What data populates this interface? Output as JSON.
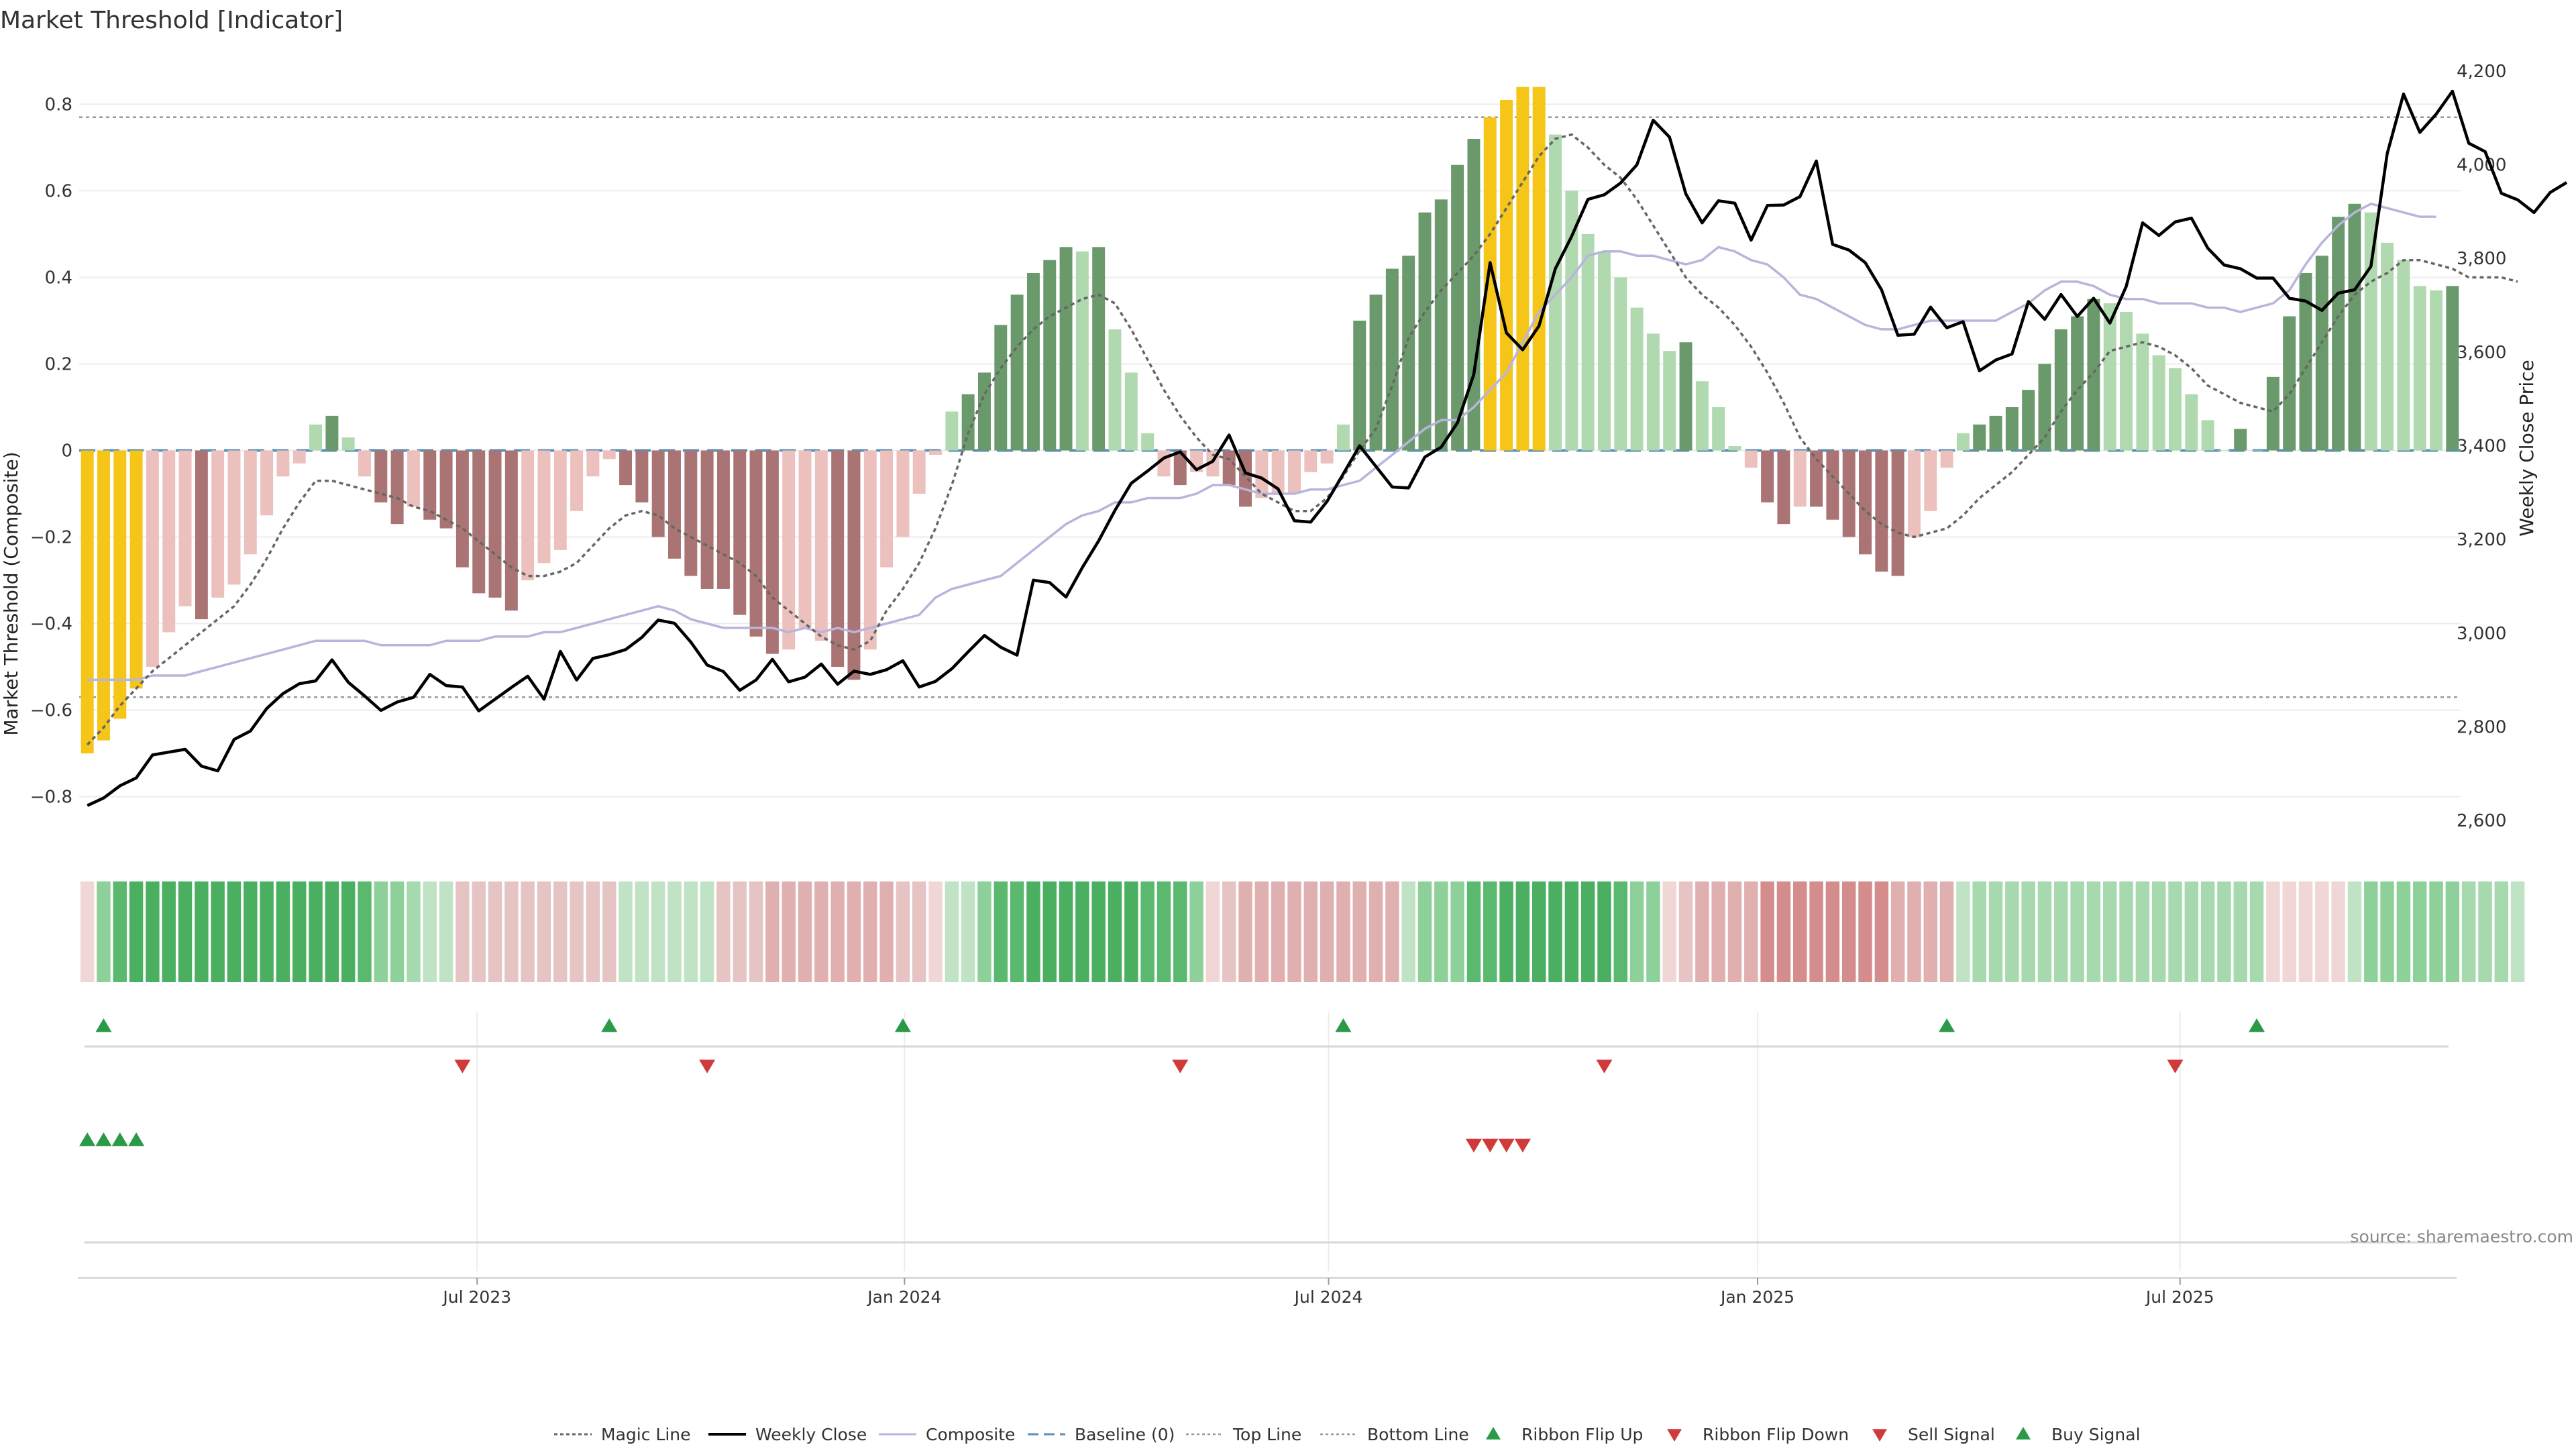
{
  "title": "Market Threshold [Indicator]",
  "source": "source: sharemaestro.com",
  "colors": {
    "yellow": "#f5c518",
    "dark_green": "#6a9a6c",
    "light_green": "#b1d9b0",
    "dark_red": "#ab7474",
    "light_red": "#ecc1bd",
    "magic_line": "#666666",
    "weekly_close": "#000000",
    "composite": "#b9b4dc",
    "baseline": "#5b8fb5",
    "threshold_lines": "#999999",
    "flip_up": "#2a9a48",
    "flip_down": "#d03a3a"
  },
  "legend": [
    {
      "label": "Magic Line",
      "icon": "dotted-line-icon"
    },
    {
      "label": "Weekly Close",
      "icon": "solid-line-icon"
    },
    {
      "label": "Composite",
      "icon": "thin-line-icon"
    },
    {
      "label": "Baseline (0)",
      "icon": "dashed-line-icon"
    },
    {
      "label": "Top Line",
      "icon": "dotted-line-icon"
    },
    {
      "label": "Bottom Line",
      "icon": "dotted-line-icon"
    },
    {
      "label": "Ribbon Flip Up",
      "icon": "triangle-up-icon"
    },
    {
      "label": "Ribbon Flip Down",
      "icon": "triangle-down-icon"
    },
    {
      "label": "Sell Signal",
      "icon": "triangle-down-icon"
    },
    {
      "label": "Buy Signal",
      "icon": "triangle-up-icon"
    }
  ],
  "chart_data": {
    "type": "bar",
    "ylabel": "Market Threshold (Composite)",
    "y2label": "Weekly Close Price",
    "ylim": [
      -0.92,
      0.92
    ],
    "y2lim": [
      2540,
      4240
    ],
    "yticks": [
      -0.8,
      -0.6,
      -0.4,
      -0.2,
      0,
      0.2,
      0.4,
      0.6,
      0.8
    ],
    "y2ticks": [
      2600,
      2800,
      3000,
      3200,
      3400,
      3600,
      3800,
      4000,
      4200
    ],
    "xticks": [
      "Jul 2023",
      "Jan 2024",
      "Jul 2024",
      "Jan 2025",
      "Jul 2025"
    ],
    "top_line": 0.77,
    "bottom_line": -0.57,
    "baseline": 0,
    "grid": true,
    "legend_position": "bottom",
    "bar_colors_key": "Y=yellow G=dark green g=light green R=dark red r=light red",
    "composite_bars": [
      {
        "v": -0.7,
        "c": "Y"
      },
      {
        "v": -0.67,
        "c": "Y"
      },
      {
        "v": -0.62,
        "c": "Y"
      },
      {
        "v": -0.55,
        "c": "Y"
      },
      {
        "v": -0.5,
        "c": "r"
      },
      {
        "v": -0.42,
        "c": "r"
      },
      {
        "v": -0.36,
        "c": "r"
      },
      {
        "v": -0.39,
        "c": "R"
      },
      {
        "v": -0.34,
        "c": "r"
      },
      {
        "v": -0.31,
        "c": "r"
      },
      {
        "v": -0.24,
        "c": "r"
      },
      {
        "v": -0.15,
        "c": "r"
      },
      {
        "v": -0.06,
        "c": "r"
      },
      {
        "v": -0.03,
        "c": "r"
      },
      {
        "v": 0.06,
        "c": "g"
      },
      {
        "v": 0.08,
        "c": "G"
      },
      {
        "v": 0.03,
        "c": "g"
      },
      {
        "v": -0.06,
        "c": "r"
      },
      {
        "v": -0.12,
        "c": "R"
      },
      {
        "v": -0.17,
        "c": "R"
      },
      {
        "v": -0.13,
        "c": "r"
      },
      {
        "v": -0.16,
        "c": "R"
      },
      {
        "v": -0.18,
        "c": "R"
      },
      {
        "v": -0.27,
        "c": "R"
      },
      {
        "v": -0.33,
        "c": "R"
      },
      {
        "v": -0.34,
        "c": "R"
      },
      {
        "v": -0.37,
        "c": "R"
      },
      {
        "v": -0.3,
        "c": "r"
      },
      {
        "v": -0.26,
        "c": "r"
      },
      {
        "v": -0.23,
        "c": "r"
      },
      {
        "v": -0.14,
        "c": "r"
      },
      {
        "v": -0.06,
        "c": "r"
      },
      {
        "v": -0.02,
        "c": "r"
      },
      {
        "v": -0.08,
        "c": "R"
      },
      {
        "v": -0.12,
        "c": "R"
      },
      {
        "v": -0.2,
        "c": "R"
      },
      {
        "v": -0.25,
        "c": "R"
      },
      {
        "v": -0.29,
        "c": "R"
      },
      {
        "v": -0.32,
        "c": "R"
      },
      {
        "v": -0.32,
        "c": "R"
      },
      {
        "v": -0.38,
        "c": "R"
      },
      {
        "v": -0.43,
        "c": "R"
      },
      {
        "v": -0.47,
        "c": "R"
      },
      {
        "v": -0.46,
        "c": "r"
      },
      {
        "v": -0.41,
        "c": "r"
      },
      {
        "v": -0.44,
        "c": "r"
      },
      {
        "v": -0.5,
        "c": "R"
      },
      {
        "v": -0.53,
        "c": "R"
      },
      {
        "v": -0.46,
        "c": "r"
      },
      {
        "v": -0.27,
        "c": "r"
      },
      {
        "v": -0.2,
        "c": "r"
      },
      {
        "v": -0.1,
        "c": "r"
      },
      {
        "v": -0.01,
        "c": "r"
      },
      {
        "v": 0.09,
        "c": "g"
      },
      {
        "v": 0.13,
        "c": "G"
      },
      {
        "v": 0.18,
        "c": "G"
      },
      {
        "v": 0.29,
        "c": "G"
      },
      {
        "v": 0.36,
        "c": "G"
      },
      {
        "v": 0.41,
        "c": "G"
      },
      {
        "v": 0.44,
        "c": "G"
      },
      {
        "v": 0.47,
        "c": "G"
      },
      {
        "v": 0.46,
        "c": "g"
      },
      {
        "v": 0.47,
        "c": "G"
      },
      {
        "v": 0.28,
        "c": "g"
      },
      {
        "v": 0.18,
        "c": "g"
      },
      {
        "v": 0.04,
        "c": "g"
      },
      {
        "v": -0.06,
        "c": "r"
      },
      {
        "v": -0.08,
        "c": "R"
      },
      {
        "v": -0.05,
        "c": "r"
      },
      {
        "v": -0.06,
        "c": "r"
      },
      {
        "v": -0.08,
        "c": "R"
      },
      {
        "v": -0.13,
        "c": "R"
      },
      {
        "v": -0.11,
        "c": "r"
      },
      {
        "v": -0.1,
        "c": "r"
      },
      {
        "v": -0.1,
        "c": "r"
      },
      {
        "v": -0.05,
        "c": "r"
      },
      {
        "v": -0.03,
        "c": "r"
      },
      {
        "v": 0.06,
        "c": "g"
      },
      {
        "v": 0.3,
        "c": "G"
      },
      {
        "v": 0.36,
        "c": "G"
      },
      {
        "v": 0.42,
        "c": "G"
      },
      {
        "v": 0.45,
        "c": "G"
      },
      {
        "v": 0.55,
        "c": "G"
      },
      {
        "v": 0.58,
        "c": "G"
      },
      {
        "v": 0.66,
        "c": "G"
      },
      {
        "v": 0.72,
        "c": "G"
      },
      {
        "v": 0.77,
        "c": "Y"
      },
      {
        "v": 0.81,
        "c": "Y"
      },
      {
        "v": 0.84,
        "c": "Y"
      },
      {
        "v": 0.84,
        "c": "Y"
      },
      {
        "v": 0.73,
        "c": "g"
      },
      {
        "v": 0.6,
        "c": "g"
      },
      {
        "v": 0.5,
        "c": "g"
      },
      {
        "v": 0.46,
        "c": "g"
      },
      {
        "v": 0.4,
        "c": "g"
      },
      {
        "v": 0.33,
        "c": "g"
      },
      {
        "v": 0.27,
        "c": "g"
      },
      {
        "v": 0.23,
        "c": "g"
      },
      {
        "v": 0.25,
        "c": "G"
      },
      {
        "v": 0.16,
        "c": "g"
      },
      {
        "v": 0.1,
        "c": "g"
      },
      {
        "v": 0.01,
        "c": "g"
      },
      {
        "v": -0.04,
        "c": "r"
      },
      {
        "v": -0.12,
        "c": "R"
      },
      {
        "v": -0.17,
        "c": "R"
      },
      {
        "v": -0.13,
        "c": "r"
      },
      {
        "v": -0.13,
        "c": "R"
      },
      {
        "v": -0.16,
        "c": "R"
      },
      {
        "v": -0.2,
        "c": "R"
      },
      {
        "v": -0.24,
        "c": "R"
      },
      {
        "v": -0.28,
        "c": "R"
      },
      {
        "v": -0.29,
        "c": "R"
      },
      {
        "v": -0.2,
        "c": "r"
      },
      {
        "v": -0.14,
        "c": "r"
      },
      {
        "v": -0.04,
        "c": "r"
      },
      {
        "v": 0.04,
        "c": "g"
      },
      {
        "v": 0.06,
        "c": "G"
      },
      {
        "v": 0.08,
        "c": "G"
      },
      {
        "v": 0.1,
        "c": "G"
      },
      {
        "v": 0.14,
        "c": "G"
      },
      {
        "v": 0.2,
        "c": "G"
      },
      {
        "v": 0.28,
        "c": "G"
      },
      {
        "v": 0.31,
        "c": "G"
      },
      {
        "v": 0.35,
        "c": "G"
      },
      {
        "v": 0.34,
        "c": "g"
      },
      {
        "v": 0.32,
        "c": "g"
      },
      {
        "v": 0.27,
        "c": "g"
      },
      {
        "v": 0.22,
        "c": "g"
      },
      {
        "v": 0.19,
        "c": "g"
      },
      {
        "v": 0.13,
        "c": "g"
      },
      {
        "v": 0.07,
        "c": "g"
      },
      {
        "v": 0.0,
        "c": "g"
      },
      {
        "v": 0.05,
        "c": "G"
      },
      {
        "v": 0.0,
        "c": "g"
      },
      {
        "v": 0.17,
        "c": "G"
      },
      {
        "v": 0.31,
        "c": "G"
      },
      {
        "v": 0.41,
        "c": "G"
      },
      {
        "v": 0.45,
        "c": "G"
      },
      {
        "v": 0.54,
        "c": "G"
      },
      {
        "v": 0.57,
        "c": "G"
      },
      {
        "v": 0.55,
        "c": "g"
      },
      {
        "v": 0.48,
        "c": "g"
      },
      {
        "v": 0.44,
        "c": "g"
      },
      {
        "v": 0.38,
        "c": "g"
      },
      {
        "v": 0.37,
        "c": "g"
      },
      {
        "v": 0.38,
        "c": "G"
      }
    ],
    "weekly_close": [
      2632,
      2648,
      2674,
      2691,
      2740,
      2746,
      2752,
      2716,
      2706,
      2773,
      2791,
      2839,
      2871,
      2892,
      2898,
      2943,
      2895,
      2866,
      2835,
      2853,
      2863,
      2912,
      2888,
      2885,
      2834,
      2859,
      2884,
      2908,
      2859,
      2961,
      2900,
      2946,
      2954,
      2965,
      2991,
      3028,
      3021,
      2981,
      2932,
      2918,
      2878,
      2900,
      2944,
      2896,
      2906,
      2934,
      2891,
      2919,
      2912,
      2922,
      2941,
      2885,
      2897,
      2924,
      2960,
      2995,
      2970,
      2953,
      3113,
      3108,
      3077,
      3140,
      3197,
      3262,
      3320,
      3346,
      3374,
      3387,
      3349,
      3367,
      3423,
      3342,
      3331,
      3308,
      3240,
      3237,
      3281,
      3340,
      3400,
      3356,
      3312,
      3310,
      3376,
      3397,
      3449,
      3552,
      3791,
      3641,
      3605,
      3656,
      3778,
      3847,
      3926,
      3936,
      3961,
      4000,
      4095,
      4059,
      3938,
      3876,
      3923,
      3918,
      3839,
      3913,
      3914,
      3932,
      4008,
      3830,
      3818,
      3791,
      3733,
      3636,
      3638,
      3696,
      3652,
      3665,
      3560,
      3583,
      3596,
      3708,
      3670,
      3723,
      3676,
      3715,
      3662,
      3740,
      3876,
      3849,
      3878,
      3886,
      3822,
      3786,
      3778,
      3758,
      3758,
      3715,
      3709,
      3689,
      3726,
      3733,
      3783,
      4024,
      4151,
      4069,
      4108,
      4157,
      4046,
      4028,
      3939,
      3925,
      3898,
      3941,
      3962
    ],
    "magic_line": [
      -0.68,
      -0.64,
      -0.59,
      -0.55,
      -0.51,
      -0.48,
      -0.45,
      -0.42,
      -0.39,
      -0.36,
      -0.31,
      -0.25,
      -0.18,
      -0.12,
      -0.07,
      -0.07,
      -0.08,
      -0.09,
      -0.1,
      -0.11,
      -0.13,
      -0.14,
      -0.16,
      -0.18,
      -0.21,
      -0.24,
      -0.27,
      -0.29,
      -0.29,
      -0.28,
      -0.26,
      -0.22,
      -0.18,
      -0.15,
      -0.14,
      -0.15,
      -0.18,
      -0.2,
      -0.22,
      -0.24,
      -0.26,
      -0.29,
      -0.34,
      -0.37,
      -0.4,
      -0.43,
      -0.45,
      -0.46,
      -0.44,
      -0.37,
      -0.32,
      -0.26,
      -0.18,
      -0.08,
      0.04,
      0.13,
      0.19,
      0.24,
      0.28,
      0.31,
      0.33,
      0.35,
      0.36,
      0.34,
      0.28,
      0.21,
      0.14,
      0.08,
      0.03,
      -0.01,
      -0.02,
      -0.06,
      -0.1,
      -0.12,
      -0.14,
      -0.14,
      -0.11,
      -0.06,
      0.0,
      0.05,
      0.15,
      0.26,
      0.32,
      0.37,
      0.41,
      0.45,
      0.5,
      0.56,
      0.62,
      0.68,
      0.72,
      0.73,
      0.7,
      0.66,
      0.63,
      0.58,
      0.52,
      0.46,
      0.4,
      0.36,
      0.33,
      0.29,
      0.24,
      0.18,
      0.11,
      0.03,
      -0.02,
      -0.06,
      -0.1,
      -0.14,
      -0.17,
      -0.19,
      -0.2,
      -0.19,
      -0.18,
      -0.15,
      -0.11,
      -0.08,
      -0.05,
      -0.01,
      0.03,
      0.09,
      0.14,
      0.18,
      0.23,
      0.24,
      0.25,
      0.24,
      0.22,
      0.19,
      0.15,
      0.13,
      0.11,
      0.1,
      0.09,
      0.13,
      0.19,
      0.25,
      0.31,
      0.36,
      0.39,
      0.41,
      0.44,
      0.44,
      0.43,
      0.42,
      0.4,
      0.4,
      0.4,
      0.39
    ],
    "composite_line": [
      -0.53,
      -0.53,
      -0.53,
      -0.53,
      -0.52,
      -0.52,
      -0.52,
      -0.51,
      -0.5,
      -0.49,
      -0.48,
      -0.47,
      -0.46,
      -0.45,
      -0.44,
      -0.44,
      -0.44,
      -0.44,
      -0.45,
      -0.45,
      -0.45,
      -0.45,
      -0.44,
      -0.44,
      -0.44,
      -0.43,
      -0.43,
      -0.43,
      -0.42,
      -0.42,
      -0.41,
      -0.4,
      -0.39,
      -0.38,
      -0.37,
      -0.36,
      -0.37,
      -0.39,
      -0.4,
      -0.41,
      -0.41,
      -0.41,
      -0.41,
      -0.42,
      -0.41,
      -0.42,
      -0.41,
      -0.42,
      -0.41,
      -0.4,
      -0.39,
      -0.38,
      -0.34,
      -0.32,
      -0.31,
      -0.3,
      -0.29,
      -0.26,
      -0.23,
      -0.2,
      -0.17,
      -0.15,
      -0.14,
      -0.12,
      -0.12,
      -0.11,
      -0.11,
      -0.11,
      -0.1,
      -0.08,
      -0.08,
      -0.09,
      -0.1,
      -0.1,
      -0.1,
      -0.09,
      -0.09,
      -0.08,
      -0.07,
      -0.04,
      -0.01,
      0.02,
      0.05,
      0.07,
      0.07,
      0.1,
      0.14,
      0.18,
      0.25,
      0.32,
      0.36,
      0.4,
      0.45,
      0.46,
      0.46,
      0.45,
      0.45,
      0.44,
      0.43,
      0.44,
      0.47,
      0.46,
      0.44,
      0.43,
      0.4,
      0.36,
      0.35,
      0.33,
      0.31,
      0.29,
      0.28,
      0.28,
      0.29,
      0.3,
      0.3,
      0.3,
      0.3,
      0.3,
      0.32,
      0.34,
      0.37,
      0.39,
      0.39,
      0.38,
      0.36,
      0.35,
      0.35,
      0.34,
      0.34,
      0.34,
      0.33,
      0.33,
      0.32,
      0.33,
      0.34,
      0.37,
      0.43,
      0.48,
      0.52,
      0.55,
      0.57,
      0.56,
      0.55,
      0.54,
      0.54
    ],
    "ribbon_colors": [
      "#f1d6d6",
      "#8ed09a",
      "#5bb86f",
      "#4aaf60",
      "#4aaf60",
      "#4aaf60",
      "#4aaf60",
      "#4aaf60",
      "#4aaf60",
      "#4aaf60",
      "#4aaf60",
      "#4aaf60",
      "#4aaf60",
      "#4aaf60",
      "#4aaf60",
      "#4aaf60",
      "#4aaf60",
      "#5bb86f",
      "#8ed09a",
      "#8ed09a",
      "#a6d9ad",
      "#bfe3c4",
      "#bfe3c4",
      "#e6c4c4",
      "#e6c4c4",
      "#e6c4c4",
      "#e6c4c4",
      "#e6c4c4",
      "#e6c4c4",
      "#e6c4c4",
      "#e6c4c4",
      "#e6c4c4",
      "#e6c4c4",
      "#bfe3c4",
      "#bfe3c4",
      "#bfe3c4",
      "#bfe3c4",
      "#bfe3c4",
      "#bfe3c4",
      "#e6c4c4",
      "#e6c4c4",
      "#e6c4c4",
      "#e0b0b0",
      "#e0b0b0",
      "#e0b0b0",
      "#e0b0b0",
      "#e0b0b0",
      "#e0b0b0",
      "#e0b0b0",
      "#e0b0b0",
      "#e6c4c4",
      "#e6c4c4",
      "#f1d6d6",
      "#bfe3c4",
      "#bfe3c4",
      "#8ed09a",
      "#5bb86f",
      "#5bb86f",
      "#4aaf60",
      "#4aaf60",
      "#4aaf60",
      "#4aaf60",
      "#4aaf60",
      "#4aaf60",
      "#4aaf60",
      "#5bb86f",
      "#5bb86f",
      "#5bb86f",
      "#8ed09a",
      "#f1d6d6",
      "#e6c4c4",
      "#e0b0b0",
      "#e0b0b0",
      "#e0b0b0",
      "#e0b0b0",
      "#e0b0b0",
      "#e0b0b0",
      "#e0b0b0",
      "#e0b0b0",
      "#e0b0b0",
      "#e0b0b0",
      "#bfe3c4",
      "#8ed09a",
      "#8ed09a",
      "#8ed09a",
      "#5bb86f",
      "#5bb86f",
      "#4aaf60",
      "#4aaf60",
      "#4aaf60",
      "#4aaf60",
      "#4aaf60",
      "#4aaf60",
      "#4aaf60",
      "#5bb86f",
      "#8ed09a",
      "#8ed09a",
      "#f1d6d6",
      "#e6c4c4",
      "#e0b0b0",
      "#e0b0b0",
      "#e0b0b0",
      "#e0b0b0",
      "#d48c8c",
      "#d48c8c",
      "#d48c8c",
      "#d48c8c",
      "#d48c8c",
      "#d48c8c",
      "#d48c8c",
      "#d48c8c",
      "#e0b0b0",
      "#e0b0b0",
      "#e0b0b0",
      "#e0b0b0",
      "#bfe3c4",
      "#a6d9ad",
      "#a6d9ad",
      "#a6d9ad",
      "#a6d9ad",
      "#a6d9ad",
      "#a6d9ad",
      "#a6d9ad",
      "#a6d9ad",
      "#a6d9ad",
      "#a6d9ad",
      "#a6d9ad",
      "#a6d9ad",
      "#a6d9ad",
      "#a6d9ad",
      "#a6d9ad",
      "#a6d9ad",
      "#a6d9ad",
      "#a6d9ad",
      "#f1d6d6",
      "#f1d6d6",
      "#f1d6d6",
      "#f1d6d6",
      "#f1d6d6",
      "#bfe3c4",
      "#8ed09a",
      "#8ed09a",
      "#8ed09a",
      "#8ed09a",
      "#8ed09a",
      "#8ed09a",
      "#a6d9ad",
      "#a6d9ad",
      "#a6d9ad",
      "#bfe3c4"
    ],
    "ribbon_flip_up_weeks": [
      1,
      32,
      50,
      77,
      114,
      133
    ],
    "ribbon_flip_down_weeks": [
      23,
      38,
      67,
      93,
      128
    ],
    "buy_signal_weeks": [
      0,
      1,
      2,
      3
    ],
    "sell_signal_weeks": [
      85,
      86,
      87,
      88
    ]
  }
}
